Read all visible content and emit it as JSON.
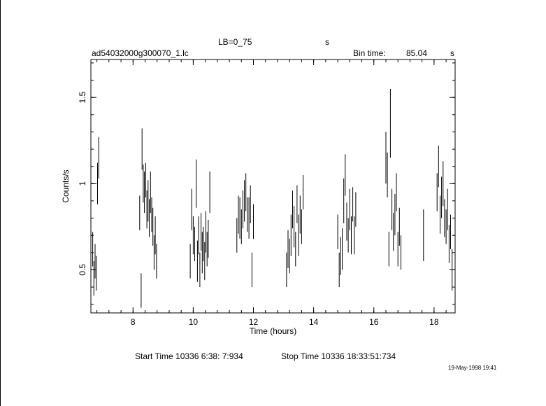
{
  "header": {
    "lb_label": "LB=0_75",
    "lb_unit": "s",
    "filename": "ad54032000g300070_1.lc",
    "bin_time_label": "Bin time:",
    "bin_time_value": "85.04",
    "bin_time_unit": "s"
  },
  "footer": {
    "start_time": "Start Time 10336  6:38: 7:934",
    "stop_time": "Stop Time 10336 18:33:51:734",
    "timestamp": "19-May-1998 19:41"
  },
  "chart_data": {
    "type": "scatter",
    "title": "",
    "xlabel": "Time (hours)",
    "ylabel": "Counts/s",
    "xlim": [
      6.6,
      18.7
    ],
    "ylim": [
      0.25,
      1.72
    ],
    "x_ticks": [
      8,
      10,
      12,
      14,
      16,
      18
    ],
    "y_ticks": [
      0.5,
      1,
      1.5
    ],
    "x_tick_labels": [
      "8",
      "10",
      "12",
      "14",
      "16",
      "18"
    ],
    "y_tick_labels": [
      "0.5",
      "1",
      "1.5"
    ],
    "grid": false,
    "error_bars": true,
    "segments": [
      {
        "x": [
          6.66,
          6.7,
          6.74,
          6.78,
          6.82,
          6.86
        ],
        "y": [
          0.62,
          0.45,
          0.55,
          0.48,
          1.0,
          1.15
        ],
        "err": [
          0.1,
          0.1,
          0.1,
          0.1,
          0.12,
          0.12
        ]
      },
      {
        "x": [
          8.22,
          8.27,
          8.3,
          8.34,
          8.38,
          8.42,
          8.46,
          8.5,
          8.54,
          8.58,
          8.62,
          8.66,
          8.7,
          8.74,
          8.78
        ],
        "y": [
          0.83,
          0.38,
          1.2,
          1.0,
          0.95,
          1.02,
          0.85,
          0.9,
          0.8,
          0.95,
          0.82,
          0.75,
          0.6,
          0.7,
          0.55
        ],
        "err": [
          0.1,
          0.1,
          0.12,
          0.11,
          0.12,
          0.1,
          0.11,
          0.12,
          0.11,
          0.12,
          0.1,
          0.11,
          0.1,
          0.11,
          0.1
        ]
      },
      {
        "x": [
          9.9,
          9.95,
          10.0,
          10.05,
          10.1,
          10.14,
          10.18,
          10.22,
          10.26,
          10.3,
          10.34,
          10.38,
          10.42,
          10.46,
          10.5,
          10.55
        ],
        "y": [
          0.55,
          0.85,
          0.7,
          0.65,
          1.0,
          0.55,
          0.7,
          0.5,
          0.72,
          0.6,
          0.65,
          0.55,
          0.72,
          0.62,
          0.68,
          0.95
        ],
        "err": [
          0.1,
          0.12,
          0.11,
          0.1,
          0.14,
          0.12,
          0.11,
          0.1,
          0.11,
          0.12,
          0.1,
          0.11,
          0.12,
          0.1,
          0.11,
          0.12
        ]
      },
      {
        "x": [
          11.45,
          11.5,
          11.55,
          11.6,
          11.65,
          11.7,
          11.75,
          11.8,
          11.85,
          11.9,
          11.95,
          12.0
        ],
        "y": [
          0.7,
          0.82,
          0.8,
          0.75,
          0.85,
          0.9,
          0.95,
          0.82,
          0.8,
          0.88,
          0.5,
          0.78
        ],
        "err": [
          0.1,
          0.11,
          0.12,
          0.1,
          0.11,
          0.12,
          0.11,
          0.1,
          0.12,
          0.11,
          0.1,
          0.1
        ]
      },
      {
        "x": [
          13.1,
          13.15,
          13.2,
          13.25,
          13.3,
          13.35,
          13.4,
          13.45,
          13.5,
          13.55,
          13.6,
          13.65
        ],
        "y": [
          0.5,
          0.62,
          0.58,
          0.7,
          0.85,
          0.75,
          0.62,
          0.88,
          0.7,
          0.82,
          0.75,
          0.95
        ],
        "err": [
          0.1,
          0.11,
          0.1,
          0.12,
          0.11,
          0.12,
          0.1,
          0.11,
          0.12,
          0.11,
          0.1,
          0.1
        ]
      },
      {
        "x": [
          14.8,
          14.85,
          14.9,
          14.95,
          15.0,
          15.05,
          15.1,
          15.15,
          15.2,
          15.25,
          15.3,
          15.35,
          15.4
        ],
        "y": [
          0.72,
          0.5,
          0.58,
          0.62,
          0.9,
          1.05,
          0.78,
          0.7,
          0.85,
          0.7,
          0.88,
          0.7,
          0.85
        ],
        "err": [
          0.1,
          0.1,
          0.11,
          0.12,
          0.13,
          0.12,
          0.11,
          0.1,
          0.12,
          0.11,
          0.1,
          0.11,
          0.1
        ]
      },
      {
        "x": [
          16.4,
          16.45,
          16.5,
          16.55,
          16.6,
          16.65,
          16.7,
          16.75,
          16.8,
          16.85,
          16.9
        ],
        "y": [
          1.15,
          1.05,
          0.62,
          1.35,
          0.85,
          0.72,
          0.82,
          0.95,
          0.62,
          0.75,
          0.6
        ],
        "err": [
          0.15,
          0.13,
          0.1,
          0.2,
          0.12,
          0.11,
          0.12,
          0.11,
          0.1,
          0.11,
          0.1
        ]
      },
      {
        "x": [
          17.65
        ],
        "y": [
          0.7
        ],
        "err": [
          0.15
        ]
      },
      {
        "x": [
          18.1,
          18.15,
          18.2,
          18.25,
          18.3,
          18.35,
          18.4,
          18.45,
          18.5,
          18.55,
          18.6
        ],
        "y": [
          0.95,
          1.1,
          0.82,
          0.92,
          1.0,
          0.8,
          0.75,
          0.85,
          0.65,
          0.72,
          0.5
        ],
        "err": [
          0.11,
          0.12,
          0.11,
          0.12,
          0.13,
          0.11,
          0.1,
          0.12,
          0.11,
          0.1,
          0.12
        ]
      }
    ]
  }
}
